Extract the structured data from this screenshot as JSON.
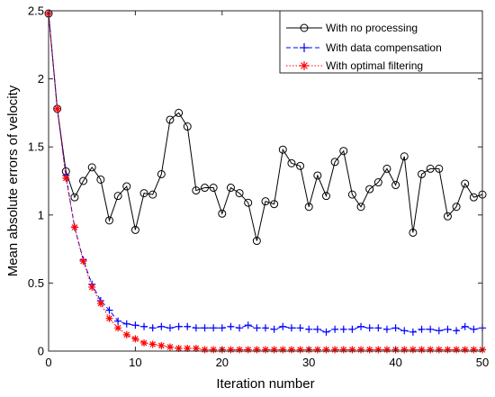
{
  "chart_data": {
    "type": "line",
    "title": "",
    "xlabel": "Iteration number",
    "ylabel": "Mean absolute errors of velocity",
    "xlim": [
      0,
      50
    ],
    "ylim": [
      0,
      2.5
    ],
    "xticks": [
      0,
      10,
      20,
      30,
      40,
      50
    ],
    "xtick_labels": [
      "0",
      "10",
      "20",
      "30",
      "40",
      "50"
    ],
    "yticks": [
      0,
      0.5,
      1,
      1.5,
      2,
      2.5
    ],
    "ytick_labels": [
      "0",
      "0.5",
      "1",
      "1.5",
      "2",
      "2.5"
    ],
    "grid": false,
    "legend_position": "top-right",
    "x": [
      0,
      1,
      2,
      3,
      4,
      5,
      6,
      7,
      8,
      9,
      10,
      11,
      12,
      13,
      14,
      15,
      16,
      17,
      18,
      19,
      20,
      21,
      22,
      23,
      24,
      25,
      26,
      27,
      28,
      29,
      30,
      31,
      32,
      33,
      34,
      35,
      36,
      37,
      38,
      39,
      40,
      41,
      42,
      43,
      44,
      45,
      46,
      47,
      48,
      49,
      50
    ],
    "series": [
      {
        "name": "With no processing",
        "color": "#000000",
        "line_style": "solid",
        "marker": "circle",
        "values": [
          2.48,
          1.78,
          1.32,
          1.13,
          1.25,
          1.35,
          1.26,
          0.96,
          1.14,
          1.21,
          0.89,
          1.16,
          1.15,
          1.3,
          1.7,
          1.75,
          1.65,
          1.18,
          1.2,
          1.2,
          1.01,
          1.2,
          1.16,
          1.09,
          0.81,
          1.1,
          1.08,
          1.48,
          1.38,
          1.36,
          1.06,
          1.29,
          1.14,
          1.39,
          1.47,
          1.15,
          1.06,
          1.19,
          1.24,
          1.34,
          1.22,
          1.43,
          0.87,
          1.3,
          1.34,
          1.34,
          0.99,
          1.06,
          1.23,
          1.13,
          1.15
        ]
      },
      {
        "name": "With data compensation",
        "color": "#0000ff",
        "line_style": "dashed",
        "marker": "plus",
        "values": [
          2.48,
          1.78,
          1.29,
          0.91,
          0.67,
          0.49,
          0.37,
          0.3,
          0.22,
          0.2,
          0.19,
          0.18,
          0.17,
          0.18,
          0.17,
          0.18,
          0.18,
          0.17,
          0.17,
          0.17,
          0.17,
          0.18,
          0.17,
          0.19,
          0.17,
          0.17,
          0.16,
          0.18,
          0.17,
          0.17,
          0.16,
          0.16,
          0.14,
          0.16,
          0.16,
          0.16,
          0.18,
          0.17,
          0.17,
          0.16,
          0.17,
          0.15,
          0.14,
          0.16,
          0.16,
          0.15,
          0.16,
          0.15,
          0.18,
          0.16,
          0.17
        ]
      },
      {
        "name": "With optimal filtering",
        "color": "#ff0000",
        "line_style": "dotted",
        "marker": "asterisk",
        "values": [
          2.48,
          1.78,
          1.27,
          0.91,
          0.66,
          0.47,
          0.35,
          0.24,
          0.17,
          0.12,
          0.09,
          0.06,
          0.05,
          0.04,
          0.03,
          0.02,
          0.02,
          0.02,
          0.01,
          0.01,
          0.01,
          0.01,
          0.01,
          0.01,
          0.01,
          0.01,
          0.01,
          0.01,
          0.01,
          0.01,
          0.01,
          0.01,
          0.01,
          0.01,
          0.01,
          0.01,
          0.01,
          0.01,
          0.01,
          0.01,
          0.01,
          0.01,
          0.01,
          0.01,
          0.01,
          0.01,
          0.01,
          0.01,
          0.01,
          0.01,
          0.01
        ]
      }
    ]
  }
}
